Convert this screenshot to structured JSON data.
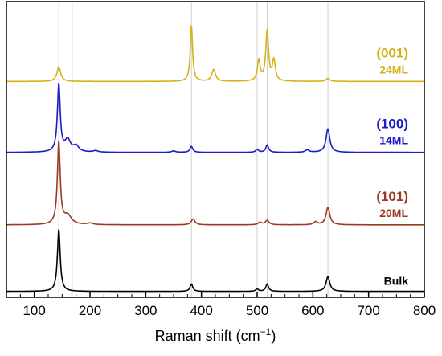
{
  "chart_data": {
    "type": "line",
    "xlabel": "Raman shift (cm",
    "xlabel_superscript": "−1",
    "xlabel_suffix": ")",
    "xlim": [
      50,
      800
    ],
    "xticks": [
      100,
      200,
      300,
      400,
      500,
      600,
      700,
      800
    ],
    "y_axis_shown": false,
    "grid": false,
    "reference_lines_x": [
      144,
      168,
      382,
      500,
      518,
      627
    ],
    "series": [
      {
        "orientation": "(001)",
        "thickness": "24ML",
        "color": "#d4b318",
        "baseline": 0.73,
        "peaks": [
          {
            "x": 144,
            "h": 0.05,
            "w": 4
          },
          {
            "x": 382,
            "h": 0.19,
            "w": 2.5
          },
          {
            "x": 422,
            "h": 0.04,
            "w": 4
          },
          {
            "x": 503,
            "h": 0.07,
            "w": 3
          },
          {
            "x": 518,
            "h": 0.17,
            "w": 3
          },
          {
            "x": 530,
            "h": 0.07,
            "w": 3
          },
          {
            "x": 627,
            "h": 0.01,
            "w": 4
          }
        ]
      },
      {
        "orientation": "(100)",
        "thickness": "14ML",
        "color": "#1a1ac8",
        "baseline": 0.49,
        "peaks": [
          {
            "x": 144,
            "h": 0.23,
            "w": 3
          },
          {
            "x": 160,
            "h": 0.04,
            "w": 6
          },
          {
            "x": 175,
            "h": 0.02,
            "w": 6
          },
          {
            "x": 210,
            "h": 0.005,
            "w": 5
          },
          {
            "x": 350,
            "h": 0.005,
            "w": 4
          },
          {
            "x": 382,
            "h": 0.02,
            "w": 3
          },
          {
            "x": 500,
            "h": 0.01,
            "w": 3
          },
          {
            "x": 518,
            "h": 0.025,
            "w": 3
          },
          {
            "x": 590,
            "h": 0.008,
            "w": 4
          },
          {
            "x": 627,
            "h": 0.08,
            "w": 4
          }
        ]
      },
      {
        "orientation": "(101)",
        "thickness": "20ML",
        "color": "#9a3a22",
        "baseline": 0.245,
        "peaks": [
          {
            "x": 144,
            "h": 0.28,
            "w": 3
          },
          {
            "x": 160,
            "h": 0.03,
            "w": 8
          },
          {
            "x": 200,
            "h": 0.005,
            "w": 6
          },
          {
            "x": 385,
            "h": 0.02,
            "w": 4
          },
          {
            "x": 505,
            "h": 0.008,
            "w": 4
          },
          {
            "x": 518,
            "h": 0.015,
            "w": 4
          },
          {
            "x": 605,
            "h": 0.01,
            "w": 4
          },
          {
            "x": 627,
            "h": 0.06,
            "w": 4
          }
        ]
      },
      {
        "orientation": "Bulk",
        "thickness": "",
        "color": "#000000",
        "baseline": 0.02,
        "peaks": [
          {
            "x": 144,
            "h": 0.21,
            "w": 3
          },
          {
            "x": 382,
            "h": 0.025,
            "w": 3
          },
          {
            "x": 500,
            "h": 0.008,
            "w": 3
          },
          {
            "x": 518,
            "h": 0.025,
            "w": 3
          },
          {
            "x": 627,
            "h": 0.05,
            "w": 4
          }
        ]
      }
    ]
  }
}
